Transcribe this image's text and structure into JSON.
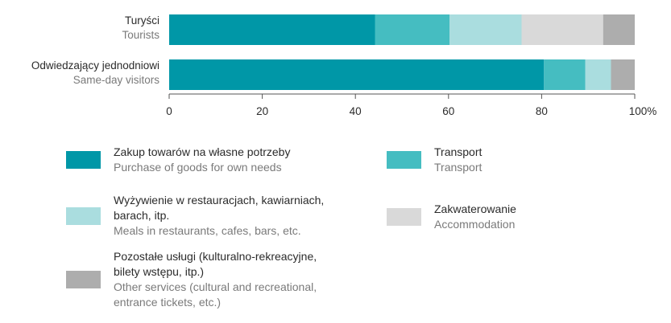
{
  "chart_data": {
    "type": "bar",
    "orientation": "horizontal",
    "stacked": true,
    "categories": [
      {
        "label": "Turyści",
        "label_en": "Tourists"
      },
      {
        "label": "Odwiedzający jednodniowi",
        "label_en": "Same-day visitors"
      }
    ],
    "series": [
      {
        "name": "Zakup towarów na własne potrzeby",
        "name_en": "Purchase of goods for own needs",
        "color": "#0097A7",
        "values": [
          44.2,
          80.5
        ]
      },
      {
        "name": "Transport",
        "name_en": "Transport",
        "color": "#45BDC1",
        "values": [
          16.0,
          8.9
        ]
      },
      {
        "name": "Wyżywienie w restauracjach, kawiarniach, barach, itp.",
        "name_en": "Meals in restaurants, cafes, bars, etc.",
        "color": "#AADDDF",
        "values": [
          15.5,
          5.5
        ]
      },
      {
        "name": "Zakwaterowanie",
        "name_en": "Accommodation",
        "color": "#D9D9D9",
        "values": [
          17.5,
          0
        ]
      },
      {
        "name": "Pozostałe usługi (kulturalno-rekreacyjne, bilety wstępu, itp.)",
        "name_en": "Other services (cultural and recreational, entrance tickets, etc.)",
        "color": "#ADADAD",
        "values": [
          6.8,
          5.1
        ]
      }
    ],
    "x_ticks": [
      "0",
      "20",
      "40",
      "60",
      "80",
      "100%"
    ],
    "xlim": [
      0,
      100
    ],
    "legend_position": "bottom",
    "grid": false
  },
  "legend": {
    "items": [
      {
        "pl": "Zakup towarów na własne potrzeby",
        "en": "Purchase of goods for own needs",
        "color": "#0097A7"
      },
      {
        "pl": "Transport",
        "en": "Transport",
        "color": "#45BDC1"
      },
      {
        "pl_line1": "Wyżywienie w restauracjach, kawiarniach,",
        "pl_line2": "barach, itp.",
        "en": "Meals in restaurants, cafes, bars, etc.",
        "color": "#AADDDF"
      },
      {
        "pl": "Zakwaterowanie",
        "en": "Accommodation",
        "color": "#D9D9D9"
      },
      {
        "pl_line1": "Pozostałe usługi (kulturalno-rekreacyjne,",
        "pl_line2": "bilety wstępu, itp.)",
        "en_line1": "Other services (cultural and recreational,",
        "en_line2": "entrance tickets, etc.)",
        "color": "#ADADAD"
      }
    ]
  }
}
